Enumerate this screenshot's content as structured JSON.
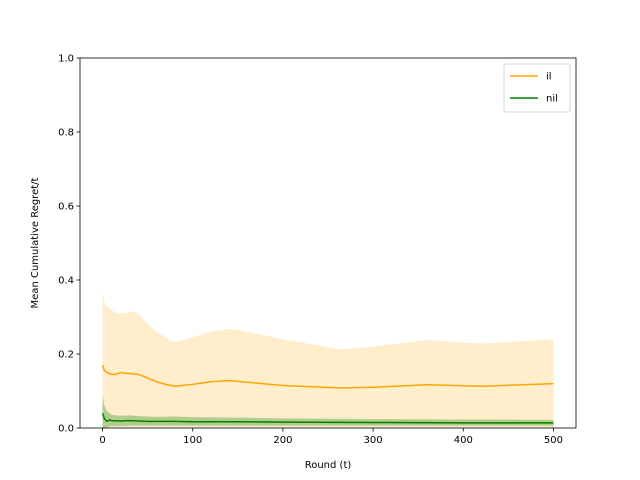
{
  "chart_data": {
    "type": "line",
    "title": "",
    "xlabel": "Round (t)",
    "ylabel": "Mean Cumulative Regret/t",
    "xlim": [
      -25,
      525
    ],
    "ylim": [
      0,
      1.0
    ],
    "xticks": [
      0,
      100,
      200,
      300,
      400,
      500
    ],
    "xtick_labels": [
      "0",
      "100",
      "200",
      "300",
      "400",
      "500"
    ],
    "yticks": [
      0,
      0.2,
      0.4,
      0.6,
      0.8,
      1.0
    ],
    "ytick_labels": [
      "0.0",
      "0.2",
      "0.4",
      "0.6",
      "0.8",
      "1.0"
    ],
    "grid": false,
    "legend_position": "top-right",
    "series": [
      {
        "name": "il",
        "color": "#FFA500",
        "x": [
          0,
          2,
          5,
          10,
          15,
          20,
          25,
          30,
          40,
          50,
          60,
          70,
          80,
          100,
          120,
          140,
          150,
          200,
          265,
          300,
          360,
          420,
          500
        ],
        "y": [
          0.17,
          0.155,
          0.15,
          0.145,
          0.145,
          0.15,
          0.148,
          0.147,
          0.145,
          0.135,
          0.125,
          0.118,
          0.113,
          0.118,
          0.125,
          0.128,
          0.126,
          0.115,
          0.108,
          0.11,
          0.117,
          0.113,
          0.12
        ],
        "upper": [
          0.365,
          0.34,
          0.33,
          0.32,
          0.31,
          0.31,
          0.31,
          0.315,
          0.31,
          0.28,
          0.26,
          0.245,
          0.232,
          0.245,
          0.26,
          0.268,
          0.265,
          0.24,
          0.212,
          0.22,
          0.238,
          0.228,
          0.24
        ],
        "lower": [
          0,
          0,
          0,
          0,
          0,
          0,
          0,
          0,
          0,
          0,
          0,
          0,
          0,
          0,
          0,
          0,
          0,
          0,
          0,
          0,
          0,
          0,
          0
        ]
      },
      {
        "name": "nil",
        "color": "#008000",
        "x": [
          0,
          2,
          5,
          8,
          10,
          20,
          30,
          40,
          50,
          60,
          80,
          100,
          150,
          200,
          300,
          400,
          500
        ],
        "y": [
          0.04,
          0.025,
          0.018,
          0.022,
          0.02,
          0.019,
          0.02,
          0.019,
          0.018,
          0.018,
          0.018,
          0.017,
          0.017,
          0.016,
          0.015,
          0.014,
          0.014
        ],
        "upper": [
          0.09,
          0.06,
          0.045,
          0.04,
          0.035,
          0.033,
          0.034,
          0.032,
          0.031,
          0.03,
          0.031,
          0.029,
          0.028,
          0.026,
          0.024,
          0.023,
          0.022
        ],
        "lower": [
          0,
          0,
          0,
          0.005,
          0.005,
          0.005,
          0.006,
          0.006,
          0.006,
          0.006,
          0.006,
          0.006,
          0.006,
          0.006,
          0.006,
          0.006,
          0.006
        ]
      }
    ]
  }
}
